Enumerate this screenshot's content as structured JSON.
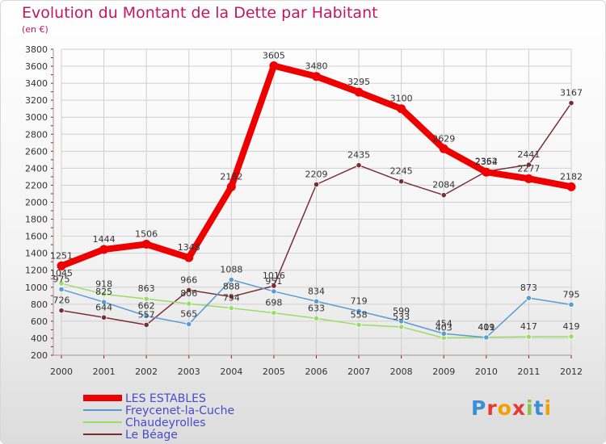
{
  "header": {
    "title": "Evolution du Montant de la Dette par Habitant",
    "unit": "(en €)"
  },
  "logo": {
    "text": "Proxiti"
  },
  "colors": {
    "title": "#c2185b",
    "legend_text": "#4a4acc",
    "grid": "#d0d0d0",
    "axis_marks": "#cc0000"
  },
  "chart_data": {
    "type": "line",
    "title": "Evolution du Montant de la Dette par Habitant",
    "ylabel": "(en €)",
    "xlabel": "",
    "ylim": [
      200,
      3800
    ],
    "yticks": [
      200,
      400,
      600,
      800,
      1000,
      1200,
      1400,
      1600,
      1800,
      2000,
      2200,
      2400,
      2600,
      2800,
      3000,
      3200,
      3400,
      3600,
      3800
    ],
    "grid": true,
    "legend_position": "bottom-left",
    "categories": [
      "2000",
      "2001",
      "2002",
      "2003",
      "2004",
      "2005",
      "2006",
      "2007",
      "2008",
      "2009",
      "2010",
      "2011",
      "2012"
    ],
    "series": [
      {
        "name": "LES ESTABLES",
        "color": "#ee0000",
        "values": [
          1251,
          1444,
          1506,
          1348,
          2182,
          3605,
          3480,
          3295,
          3100,
          2629,
          2354,
          2277,
          2182
        ],
        "labels": [
          "1251",
          "1444",
          "1506",
          "1348",
          "2182",
          "3605",
          "3480",
          "3295",
          "3100",
          "2629",
          "2354",
          "2277",
          "2182"
        ]
      },
      {
        "name": "Freycenet-la-Cuche",
        "color": "#5b9bd5",
        "values": [
          975,
          825,
          662,
          565,
          1088,
          951,
          834,
          719,
          599,
          454,
          409,
          873,
          795
        ],
        "labels": [
          "975",
          "825",
          "662",
          "565",
          "1088",
          "951",
          "834",
          "719",
          "599",
          "454",
          "409",
          "873",
          "795"
        ]
      },
      {
        "name": "Chaudeyrolles",
        "color": "#99dd66",
        "values": [
          1045,
          918,
          863,
          806,
          754,
          698,
          633,
          558,
          533,
          403,
          411,
          417,
          419
        ],
        "labels": [
          "1045",
          "918",
          "863",
          "806",
          "754",
          "698",
          "633",
          "558",
          "533",
          "403",
          "411",
          "417",
          "419"
        ]
      },
      {
        "name": "Le Béage",
        "color": "#7a2e34",
        "values": [
          726,
          644,
          557,
          966,
          888,
          1016,
          2209,
          2435,
          2245,
          2084,
          2362,
          2441,
          3167
        ],
        "labels": [
          "726",
          "644",
          "557",
          "966",
          "888",
          "1016",
          "2209",
          "2435",
          "2245",
          "2084",
          "2362",
          "2441",
          "3167"
        ]
      }
    ]
  }
}
